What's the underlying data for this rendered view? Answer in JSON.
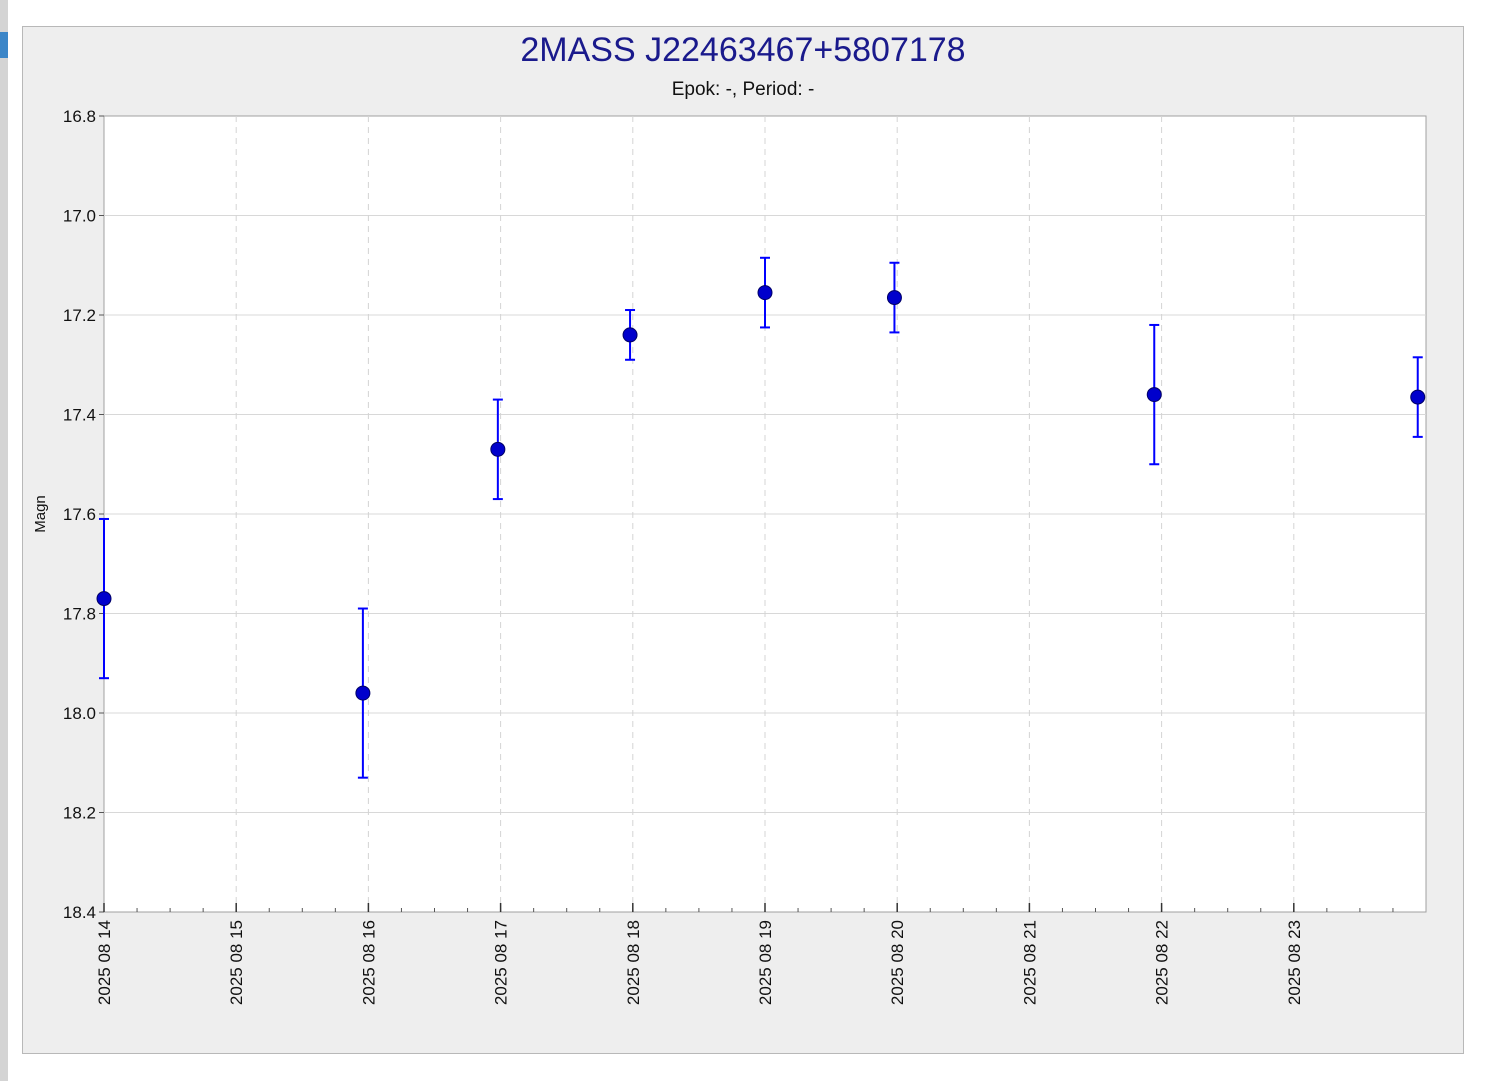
{
  "chart_data": {
    "type": "scatter",
    "title": "2MASS J22463467+5807178",
    "subtitle": "Epok: -, Period: -",
    "ylabel": "Magn",
    "xlabel": "",
    "y_inverted": true,
    "ylim": [
      16.8,
      18.4
    ],
    "yticks": [
      "16.8",
      "17.0",
      "17.2",
      "17.4",
      "17.6",
      "17.8",
      "18.0",
      "18.2",
      "18.4"
    ],
    "xlim": [
      "2025-08-14",
      "2025-08-24"
    ],
    "xticks": [
      "2025 08 14",
      "2025 08 15",
      "2025 08 16",
      "2025 08 17",
      "2025 08 18",
      "2025 08 19",
      "2025 08 20",
      "2025 08 21",
      "2025 08 22",
      "2025 08 23"
    ],
    "grid": true,
    "marker_color": "#0000cc",
    "errorbar_color": "#0000ff",
    "points": [
      {
        "x": "2025-08-14 00:00",
        "y": 17.77,
        "err": 0.16
      },
      {
        "x": "2025-08-15 23:00",
        "y": 17.96,
        "err": 0.17
      },
      {
        "x": "2025-08-16 23:30",
        "y": 17.47,
        "err": 0.1
      },
      {
        "x": "2025-08-17 23:30",
        "y": 17.24,
        "err": 0.05
      },
      {
        "x": "2025-08-19 00:00",
        "y": 17.155,
        "err": 0.07
      },
      {
        "x": "2025-08-19 23:30",
        "y": 17.165,
        "err": 0.07
      },
      {
        "x": "2025-08-21 22:40",
        "y": 17.36,
        "err": 0.14
      },
      {
        "x": "2025-08-23 22:30",
        "y": 17.365,
        "err": 0.08
      }
    ]
  }
}
